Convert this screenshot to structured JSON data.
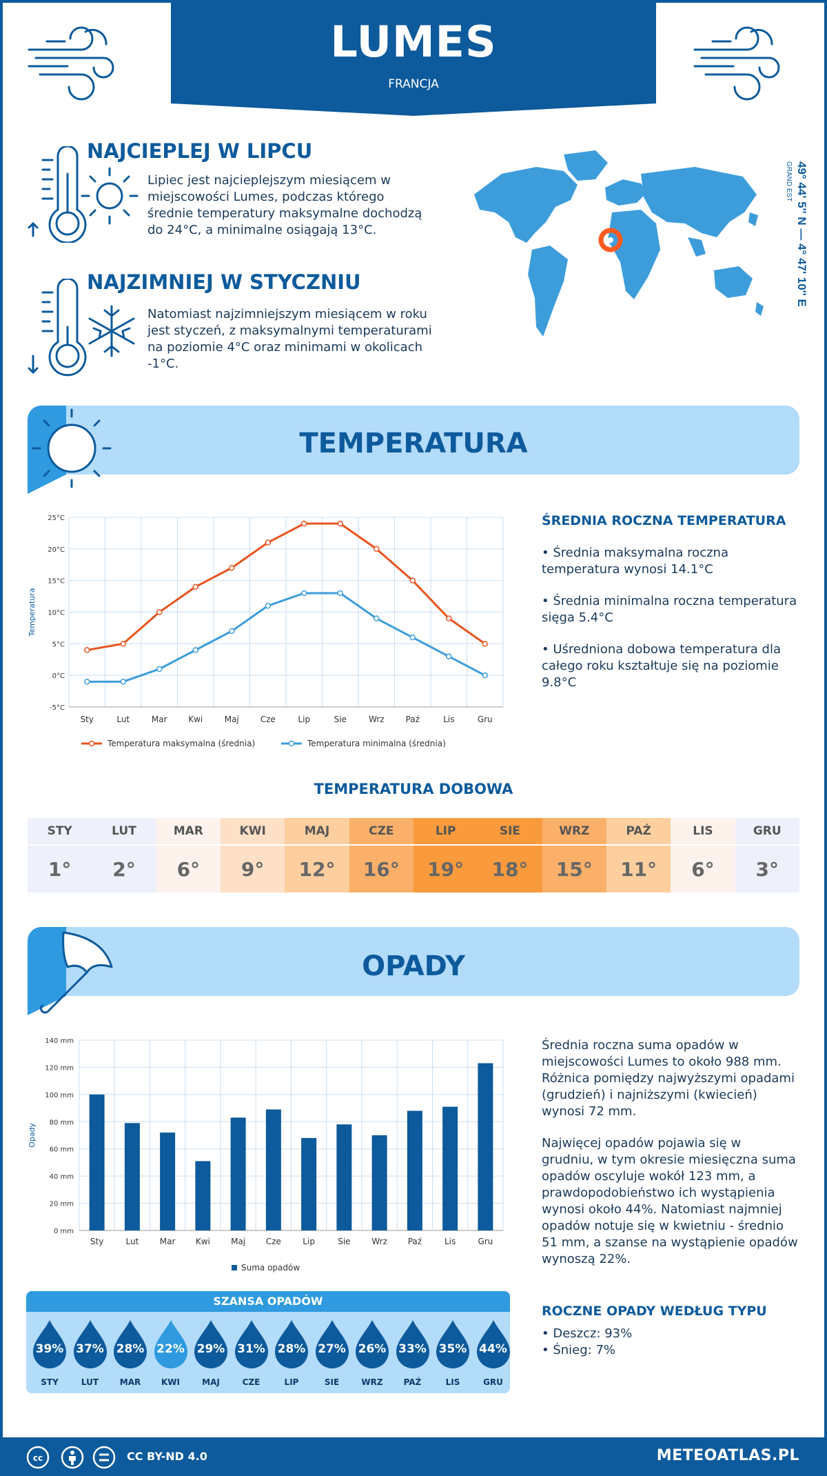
{
  "header": {
    "city": "LUMES",
    "country": "FRANCJA"
  },
  "facts": [
    {
      "title": "NAJCIEPLEJ W LIPCU",
      "text_lines": [
        "Lipiec jest najcieplejszym miesiącem w",
        "miejscowości Lumes, podczas którego",
        "średnie temperatury maksymalne dochodzą",
        "do 24°C, a minimalne osiągają 13°C."
      ]
    },
    {
      "title": "NAJZIMNIEJ W STYCZNIU",
      "text_lines": [
        "Natomiast najzimniejszym miesiącem w roku",
        "jest styczeń, z maksymalnymi temperaturami",
        "na poziomie 4°C oraz minimami w okolicach",
        "-1°C."
      ]
    }
  ],
  "coordinates": {
    "main": "49° 44' 5'' N — 4° 47' 10'' E",
    "region": "GRAND EST"
  },
  "temperature": {
    "section_title": "TEMPERATURA",
    "annual_title": "ŚREDNIA ROCZNA TEMPERATURA",
    "bullets": [
      [
        "• Średnia maksymalna roczna",
        "temperatura wynosi 14.1°C"
      ],
      [
        "• Średnia minimalna roczna temperatura",
        "sięga 5.4°C"
      ],
      [
        "• Uśredniona dobowa temperatura dla",
        "całego roku kształtuje się na poziomie",
        "9.8°C"
      ]
    ],
    "daily_title": "TEMPERATURA DOBOWA",
    "daily": [
      {
        "month": "STY",
        "value": "1°",
        "bg": "#eef0fb"
      },
      {
        "month": "LUT",
        "value": "2°",
        "bg": "#eef0fb"
      },
      {
        "month": "MAR",
        "value": "6°",
        "bg": "#fdf3ec"
      },
      {
        "month": "KWI",
        "value": "9°",
        "bg": "#fde0c6"
      },
      {
        "month": "MAJ",
        "value": "12°",
        "bg": "#fdcf9f"
      },
      {
        "month": "CZE",
        "value": "16°",
        "bg": "#fbb06a"
      },
      {
        "month": "LIP",
        "value": "19°",
        "bg": "#f99a3c"
      },
      {
        "month": "SIE",
        "value": "18°",
        "bg": "#f99a3c"
      },
      {
        "month": "WRZ",
        "value": "15°",
        "bg": "#fbb06a"
      },
      {
        "month": "PAŹ",
        "value": "11°",
        "bg": "#fdcf9f"
      },
      {
        "month": "LIS",
        "value": "6°",
        "bg": "#fdf3ec"
      },
      {
        "month": "GRU",
        "value": "3°",
        "bg": "#eef0fb"
      }
    ]
  },
  "precip": {
    "section_title": "OPADY",
    "paragraph1": [
      "Średnia roczna suma opadów w",
      "miejscowości Lumes to około 988 mm.",
      "Różnica pomiędzy najwyższymi opadami",
      "(grudzień) i najniższymi (kwiecień)",
      "wynosi 72 mm."
    ],
    "paragraph2": [
      "Najwięcej opadów pojawia się w",
      "grudniu, w tym okresie miesięczna suma",
      "opadów oscyluje wokół 123 mm, a",
      "prawdopodobieństwo ich wystąpienia",
      "wynosi około 44%. Natomiast najmniej",
      "opadów notuje się w kwietniu - średnio",
      "51 mm, a szanse na wystąpienie opadów",
      "wynoszą 22%."
    ],
    "chance_title": "SZANSA OPADÓW",
    "chance": [
      {
        "month": "STY",
        "value": "39%"
      },
      {
        "month": "LUT",
        "value": "37%"
      },
      {
        "month": "MAR",
        "value": "28%"
      },
      {
        "month": "KWI",
        "value": "22%"
      },
      {
        "month": "MAJ",
        "value": "29%"
      },
      {
        "month": "CZE",
        "value": "31%"
      },
      {
        "month": "LIP",
        "value": "28%"
      },
      {
        "month": "SIE",
        "value": "27%"
      },
      {
        "month": "WRZ",
        "value": "26%"
      },
      {
        "month": "PAŹ",
        "value": "33%"
      },
      {
        "month": "LIS",
        "value": "35%"
      },
      {
        "month": "GRU",
        "value": "44%"
      }
    ],
    "type_title": "ROCZNE OPADY WEDŁUG TYPU",
    "types": [
      "• Deszcz: 93%",
      "• Śnieg: 7%"
    ]
  },
  "footer": {
    "license": "CC BY-ND 4.0",
    "site": "METEOATLAS.PL"
  },
  "chart_data": [
    {
      "type": "line",
      "categories": [
        "Sty",
        "Lut",
        "Mar",
        "Kwi",
        "Maj",
        "Cze",
        "Lip",
        "Sie",
        "Wrz",
        "Paź",
        "Lis",
        "Gru"
      ],
      "series": [
        {
          "name": "Temperatura maksymalna (średnia)",
          "values": [
            4,
            5,
            10,
            14,
            17,
            21,
            24,
            24,
            20,
            15,
            9,
            5
          ],
          "color": "#e8541e"
        },
        {
          "name": "Temperatura minimalna (średnia)",
          "values": [
            -1,
            -1,
            1,
            4,
            7,
            11,
            13,
            13,
            9,
            6,
            3,
            0
          ],
          "color": "#3d9ddb"
        }
      ],
      "ylabel": "Temperatura",
      "ylim": [
        -5,
        25
      ],
      "yticks": [
        "-5°C",
        "0°C",
        "5°C",
        "10°C",
        "15°C",
        "20°C",
        "25°C"
      ],
      "grid": true,
      "legend": "bottom"
    },
    {
      "type": "bar",
      "categories": [
        "Sty",
        "Lut",
        "Mar",
        "Kwi",
        "Maj",
        "Cze",
        "Lip",
        "Sie",
        "Wrz",
        "Paź",
        "Lis",
        "Gru"
      ],
      "series": [
        {
          "name": "Suma opadów",
          "values": [
            100,
            79,
            72,
            51,
            83,
            89,
            68,
            78,
            70,
            88,
            91,
            123
          ],
          "color": "#0d5a9c"
        }
      ],
      "ylabel": "Opady",
      "ylim": [
        0,
        140
      ],
      "yticks": [
        "0 mm",
        "20 mm",
        "40 mm",
        "60 mm",
        "80 mm",
        "100 mm",
        "120 mm",
        "140 mm"
      ],
      "grid": true,
      "legend": "bottom"
    }
  ]
}
